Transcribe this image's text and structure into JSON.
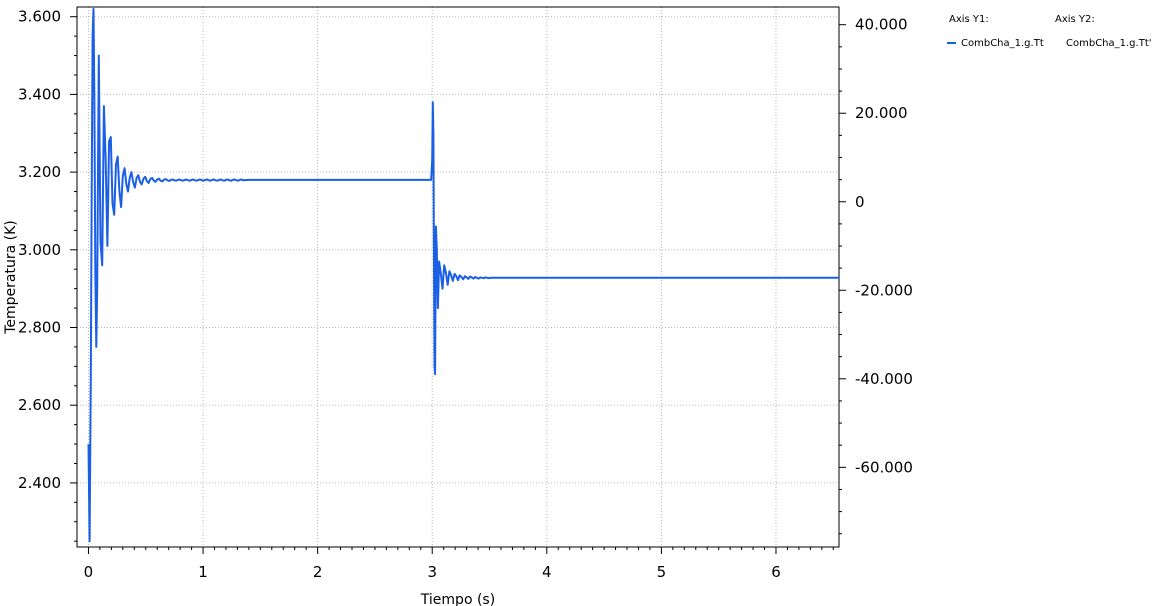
{
  "chart_data": {
    "type": "line",
    "xlabel": "Tiempo (s)",
    "ylabel": "Temperatura (K)",
    "xlim": [
      -0.1,
      6.55
    ],
    "x_ticks": [
      "0",
      "1",
      "2",
      "3",
      "4",
      "5",
      "6"
    ],
    "y1lim": [
      2.235,
      3.625
    ],
    "y1_ticks": [
      "2.400",
      "2.600",
      "2.800",
      "3.000",
      "3.200",
      "3.400",
      "3.600"
    ],
    "y2lim": [
      -78.0,
      44.0
    ],
    "y2_ticks": [
      "-60.000",
      "-40.000",
      "-20.000",
      "0",
      "20.000",
      "40.000"
    ],
    "grid": true,
    "legend": {
      "placement": "right",
      "y1_header": "Axis Y1:",
      "y2_header": "Axis Y2:"
    },
    "series": [
      {
        "name": "CombCha_1.g.Tt",
        "axis": "y1",
        "color": "#1a5fe6",
        "x": [
          0.0,
          0.01,
          0.02,
          0.028,
          0.036,
          0.044,
          0.052,
          0.06,
          0.068,
          0.076,
          0.09,
          0.105,
          0.12,
          0.135,
          0.15,
          0.165,
          0.18,
          0.195,
          0.21,
          0.225,
          0.24,
          0.255,
          0.27,
          0.285,
          0.3,
          0.315,
          0.33,
          0.345,
          0.36,
          0.375,
          0.39,
          0.405,
          0.42,
          0.435,
          0.45,
          0.465,
          0.48,
          0.495,
          0.51,
          0.525,
          0.54,
          0.555,
          0.57,
          0.585,
          0.6,
          0.615,
          0.63,
          0.645,
          0.66,
          0.675,
          0.69,
          0.705,
          0.72,
          0.735,
          0.75,
          0.765,
          0.78,
          0.795,
          0.81,
          0.825,
          0.84,
          0.855,
          0.87,
          0.885,
          0.9,
          0.915,
          0.93,
          0.945,
          0.96,
          0.975,
          0.99,
          1.005,
          1.02,
          1.035,
          1.05,
          1.065,
          1.08,
          1.095,
          1.11,
          1.125,
          1.14,
          1.155,
          1.17,
          1.185,
          1.2,
          1.215,
          1.23,
          1.245,
          1.26,
          1.275,
          1.29,
          1.305,
          1.32,
          1.335,
          1.35,
          1.4,
          2.0,
          2.5,
          2.99,
          3.0,
          3.005,
          3.01,
          3.015,
          3.02,
          3.025,
          3.032,
          3.04,
          3.05,
          3.06,
          3.075,
          3.09,
          3.105,
          3.12,
          3.135,
          3.15,
          3.165,
          3.18,
          3.195,
          3.21,
          3.225,
          3.24,
          3.255,
          3.27,
          3.285,
          3.3,
          3.315,
          3.33,
          3.345,
          3.36,
          3.375,
          3.39,
          3.405,
          3.42,
          3.435,
          3.45,
          3.465,
          3.48,
          3.495,
          3.51,
          3.525,
          3.54,
          3.56,
          4.0,
          5.0,
          6.0,
          6.55
        ],
        "y": [
          2.5,
          2.25,
          2.68,
          3.15,
          3.55,
          3.62,
          3.38,
          2.95,
          2.75,
          2.9,
          3.5,
          3.02,
          2.96,
          3.37,
          3.24,
          3.01,
          3.28,
          3.29,
          3.12,
          3.09,
          3.22,
          3.24,
          3.15,
          3.11,
          3.19,
          3.21,
          3.17,
          3.15,
          3.185,
          3.2,
          3.175,
          3.16,
          3.185,
          3.192,
          3.175,
          3.168,
          3.183,
          3.188,
          3.177,
          3.172,
          3.182,
          3.185,
          3.178,
          3.175,
          3.181,
          3.183,
          3.178,
          3.176,
          3.181,
          3.182,
          3.179,
          3.177,
          3.18,
          3.181,
          3.179,
          3.178,
          3.18,
          3.181,
          3.179,
          3.178,
          3.18,
          3.181,
          3.179,
          3.178,
          3.18,
          3.181,
          3.179,
          3.178,
          3.18,
          3.181,
          3.179,
          3.178,
          3.18,
          3.181,
          3.179,
          3.178,
          3.18,
          3.181,
          3.179,
          3.178,
          3.18,
          3.181,
          3.179,
          3.178,
          3.18,
          3.181,
          3.179,
          3.178,
          3.18,
          3.181,
          3.179,
          3.178,
          3.18,
          3.181,
          3.179,
          3.18,
          3.18,
          3.18,
          3.18,
          3.23,
          3.38,
          3.3,
          3.0,
          2.7,
          2.68,
          3.06,
          3.0,
          2.85,
          2.97,
          2.94,
          2.9,
          2.96,
          2.94,
          2.91,
          2.945,
          2.935,
          2.92,
          2.938,
          2.932,
          2.922,
          2.934,
          2.93,
          2.924,
          2.932,
          2.929,
          2.925,
          2.931,
          2.929,
          2.926,
          2.93,
          2.928,
          2.926,
          2.929,
          2.928,
          2.927,
          2.929,
          2.928,
          2.927,
          2.928,
          2.928,
          2.928,
          2.928,
          2.928,
          2.928,
          2.928,
          2.928
        ]
      },
      {
        "name": "CombCha_1.g.Tt'",
        "axis": "y2",
        "color": "#1a5fe6",
        "x": [],
        "y": []
      }
    ]
  }
}
